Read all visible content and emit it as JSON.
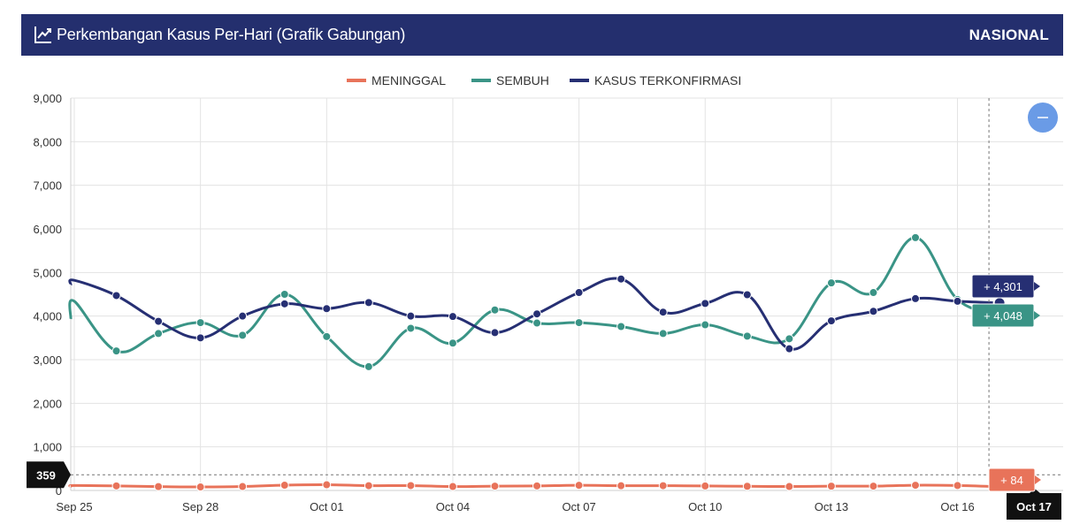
{
  "header": {
    "title": "Perkembangan Kasus Per-Hari (Grafik Gabungan)",
    "scope": "NASIONAL",
    "icon": "line-chart-icon"
  },
  "zoom_button": {
    "icon": "minus-icon",
    "color": "#6a9be6"
  },
  "chart_data": {
    "type": "line",
    "x": [
      "Sep 25",
      "Sep 26",
      "Sep 27",
      "Sep 28",
      "Sep 29",
      "Sep 30",
      "Oct 01",
      "Oct 02",
      "Oct 03",
      "Oct 04",
      "Oct 05",
      "Oct 06",
      "Oct 07",
      "Oct 08",
      "Oct 09",
      "Oct 10",
      "Oct 11",
      "Oct 12",
      "Oct 13",
      "Oct 14",
      "Oct 15",
      "Oct 16",
      "Oct 17"
    ],
    "x_tick_labels": [
      "Sep 25",
      "Sep 28",
      "Oct 01",
      "Oct 04",
      "Oct 07",
      "Oct 10",
      "Oct 13",
      "Oct 16",
      "Oct 17"
    ],
    "y_ticks": [
      "0",
      "1,000",
      "2,000",
      "3,000",
      "4,000",
      "5,000",
      "6,000",
      "7,000",
      "8,000",
      "9,000"
    ],
    "ylim": [
      0,
      9000
    ],
    "grid": true,
    "legend_position": "top-center",
    "series": [
      {
        "name": "MENINGGAL",
        "color": "#e8735a",
        "values": [
          114,
          105,
          89,
          80,
          90,
          121,
          131,
          110,
          112,
          90,
          100,
          105,
          118,
          108,
          110,
          103,
          96,
          90,
          99,
          100,
          120,
          113,
          84
        ]
      },
      {
        "name": "SEMBUH",
        "color": "#3a9486",
        "values": [
          4340,
          3200,
          3600,
          3850,
          3560,
          4500,
          3530,
          2840,
          3720,
          3380,
          4140,
          3840,
          3850,
          3760,
          3600,
          3800,
          3540,
          3480,
          4760,
          4540,
          5800,
          4380,
          4048
        ]
      },
      {
        "name": "KASUS TERKONFIRMASI",
        "color": "#262f73",
        "values": [
          4820,
          4470,
          3880,
          3500,
          4000,
          4280,
          4170,
          4310,
          4000,
          3990,
          3620,
          4050,
          4540,
          4850,
          4090,
          4290,
          4490,
          3250,
          3890,
          4110,
          4400,
          4340,
          4301
        ]
      }
    ],
    "labels": {
      "meninggal": "+ 84",
      "sembuh": "+ 4,048",
      "kasus": "+ 4,301",
      "crosshair_y": "359",
      "crosshair_x": "Oct 17"
    }
  }
}
